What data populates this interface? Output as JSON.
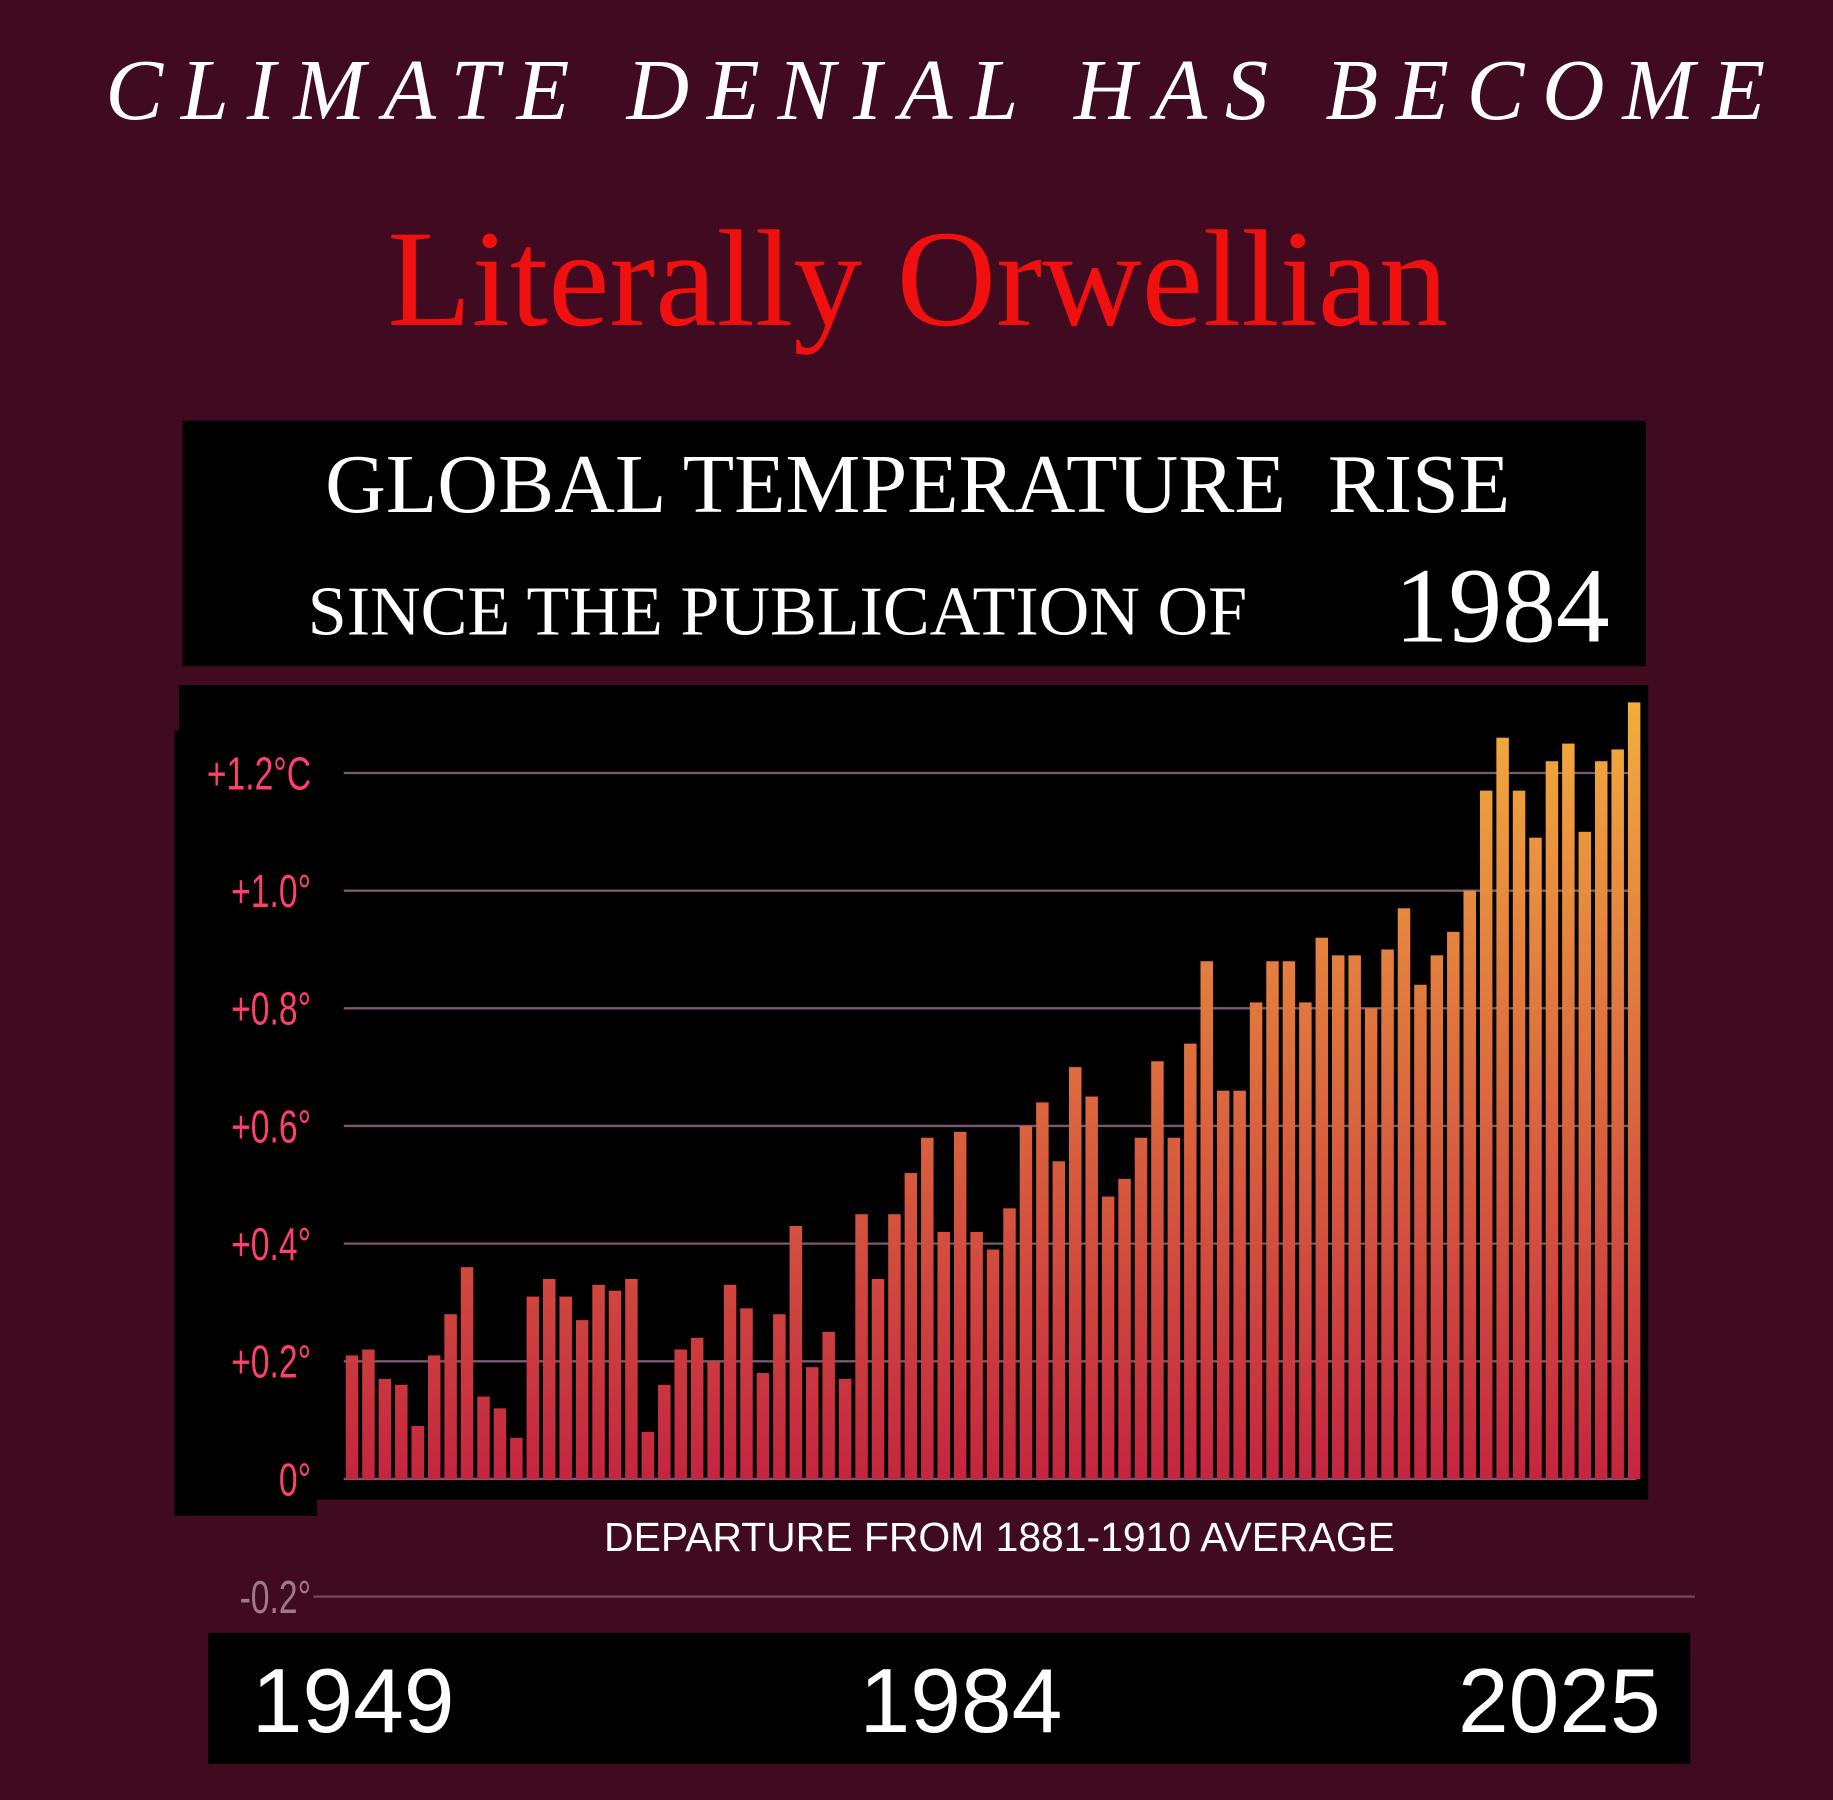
{
  "header": {
    "title": "CLIMATE DENIAL HAS BECOME",
    "headline": "Literally Orwellian"
  },
  "chart_data": {
    "type": "bar",
    "title": "GLOBAL TEMPERATURE  RISE",
    "subtitle": "SINCE THE PUBLICATION OF",
    "subtitle_emphasis": "1984",
    "note": "DEPARTURE FROM 1881-1910 AVERAGE",
    "x_labels": [
      "1949",
      "1984",
      "2025"
    ],
    "values": [
      0.21,
      0.22,
      0.17,
      0.16,
      0.09,
      0.21,
      0.28,
      0.36,
      0.14,
      0.12,
      0.07,
      0.31,
      0.34,
      0.31,
      0.27,
      0.33,
      0.32,
      0.34,
      0.08,
      0.16,
      0.22,
      0.24,
      0.2,
      0.33,
      0.29,
      0.18,
      0.28,
      0.43,
      0.19,
      0.25,
      0.17,
      0.45,
      0.34,
      0.45,
      0.52,
      0.58,
      0.42,
      0.59,
      0.42,
      0.39,
      0.46,
      0.6,
      0.64,
      0.54,
      0.7,
      0.65,
      0.48,
      0.51,
      0.58,
      0.71,
      0.58,
      0.74,
      0.88,
      0.66,
      0.66,
      0.81,
      0.88,
      0.88,
      0.81,
      0.92,
      0.89,
      0.89,
      0.8,
      0.9,
      0.97,
      0.84,
      0.89,
      0.93,
      1.0,
      1.17,
      1.26,
      1.17,
      1.09,
      1.22,
      1.25,
      1.1,
      1.22,
      1.24,
      1.32
    ],
    "colors": [
      "#c4253f",
      "#f3ad3d"
    ],
    "tick_color": "#ff3f6c",
    "ylim": [
      -0.2,
      1.3
    ],
    "yticks": [
      {
        "value": -0.2,
        "label": "-0.2°"
      },
      {
        "value": 0,
        "label": "0°"
      },
      {
        "value": 0.2,
        "label": "+0.2°"
      },
      {
        "value": 0.4,
        "label": "+0.4°"
      },
      {
        "value": 0.6,
        "label": "+0.6°"
      },
      {
        "value": 0.8,
        "label": "+0.8°"
      },
      {
        "value": 1.0,
        "label": "+1.0°"
      },
      {
        "value": 1.2,
        "label": "+1.2°C"
      }
    ],
    "grid": true
  }
}
